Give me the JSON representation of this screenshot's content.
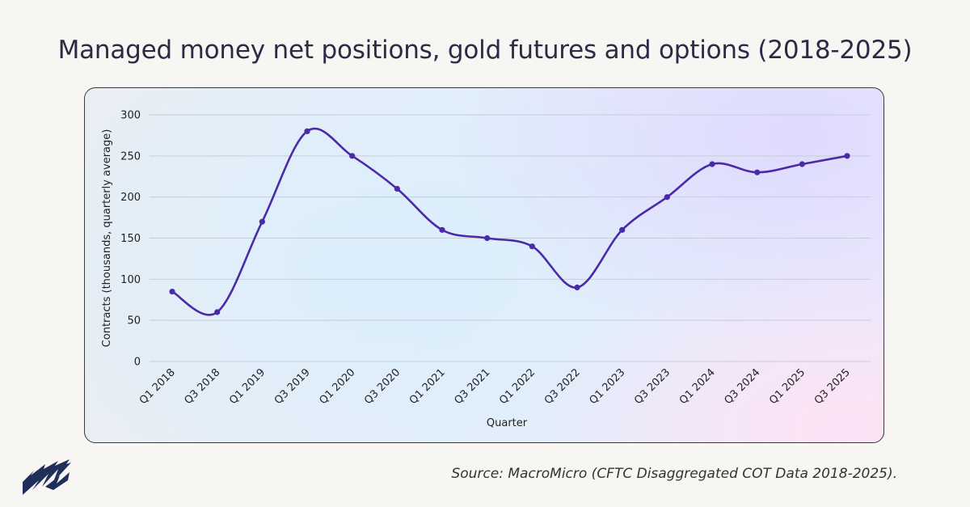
{
  "title": "Managed money net positions, gold futures and options (2018-2025)",
  "source": "Source: MacroMicro (CFTC Disaggregated COT Data 2018-2025).",
  "logo": {
    "icon": "macromicro-logo-icon"
  },
  "colors": {
    "line": "#4b2aa8",
    "grid": "#c9ccd6",
    "text": "#222222"
  },
  "chart_data": {
    "type": "line",
    "title": "Managed money net positions, gold futures and options (2018-2025)",
    "xlabel": "Quarter",
    "ylabel": "Contracts (thousands, quarterly average)",
    "ylim": [
      0,
      300
    ],
    "yticks": [
      0,
      50,
      100,
      150,
      200,
      250,
      300
    ],
    "grid": true,
    "categories": [
      "Q1 2018",
      "Q3 2018",
      "Q1 2019",
      "Q3 2019",
      "Q1 2020",
      "Q3 2020",
      "Q1 2021",
      "Q3 2021",
      "Q1 2022",
      "Q3 2022",
      "Q1 2023",
      "Q3 2023",
      "Q1 2024",
      "Q3 2024",
      "Q1 2025",
      "Q3 2025"
    ],
    "series": [
      {
        "name": "Managed money net positions",
        "values": [
          85,
          60,
          170,
          280,
          250,
          210,
          160,
          150,
          140,
          90,
          160,
          200,
          240,
          230,
          240,
          250
        ]
      }
    ]
  }
}
